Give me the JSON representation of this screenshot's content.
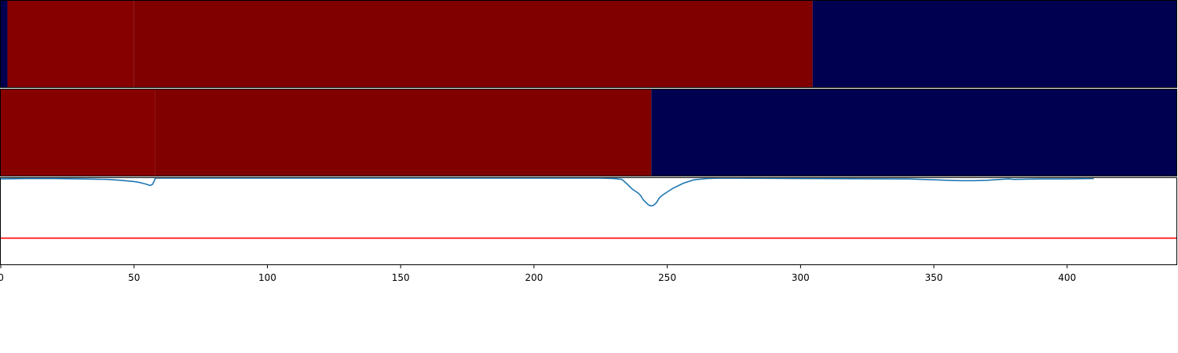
{
  "chart_data": [
    {
      "type": "heatmap",
      "segments": [
        {
          "x0": 0,
          "x1": 2.5,
          "color": "#000050"
        },
        {
          "x0": 2.5,
          "x1": 50,
          "color": "#870000"
        },
        {
          "x0": 50,
          "x1": 304.5,
          "color": "#800000"
        },
        {
          "x0": 304.5,
          "x1": 441,
          "color": "#000050"
        }
      ],
      "xlim": [
        0,
        441
      ]
    },
    {
      "type": "heatmap",
      "segments": [
        {
          "x0": 0,
          "x1": 58,
          "color": "#870000"
        },
        {
          "x0": 58,
          "x1": 244,
          "color": "#800000"
        },
        {
          "x0": 244,
          "x1": 441,
          "color": "#000050"
        }
      ],
      "xlim": [
        0,
        441
      ]
    },
    {
      "type": "line",
      "xlim": [
        0,
        441
      ],
      "ylim": [
        0,
        1
      ],
      "series": [
        {
          "color": "#1f77b4",
          "x": [
            0,
            10,
            20,
            30,
            40,
            45,
            50,
            52,
            54,
            56,
            57,
            58,
            60,
            100,
            150,
            200,
            225,
            230,
            233,
            235,
            237,
            239,
            240,
            241,
            242,
            243,
            244,
            245,
            246,
            247,
            248,
            250,
            252,
            254,
            256,
            258,
            260,
            265,
            270,
            300,
            340,
            350,
            355,
            360,
            365,
            370,
            375,
            378,
            380,
            390,
            400,
            410
          ],
          "y": [
            0.99,
            0.995,
            0.995,
            0.99,
            0.985,
            0.975,
            0.96,
            0.95,
            0.935,
            0.915,
            0.93,
            1.0,
            1.0,
            1.0,
            1.0,
            1.0,
            1.0,
            0.995,
            0.985,
            0.93,
            0.87,
            0.83,
            0.8,
            0.75,
            0.72,
            0.69,
            0.68,
            0.69,
            0.72,
            0.77,
            0.8,
            0.84,
            0.88,
            0.91,
            0.94,
            0.96,
            0.98,
            0.995,
            1.0,
            0.995,
            0.99,
            0.98,
            0.975,
            0.97,
            0.97,
            0.975,
            0.985,
            0.99,
            0.985,
            0.99,
            0.99,
            0.995
          ]
        }
      ],
      "hlines": [
        {
          "y": 0.31,
          "color": "#ff0000"
        }
      ],
      "xticks": [
        0,
        50,
        100,
        150,
        200,
        250,
        300,
        350,
        400
      ],
      "xtick_labels": [
        "0",
        "50",
        "100",
        "150",
        "200",
        "250",
        "300",
        "350",
        "400"
      ]
    }
  ]
}
